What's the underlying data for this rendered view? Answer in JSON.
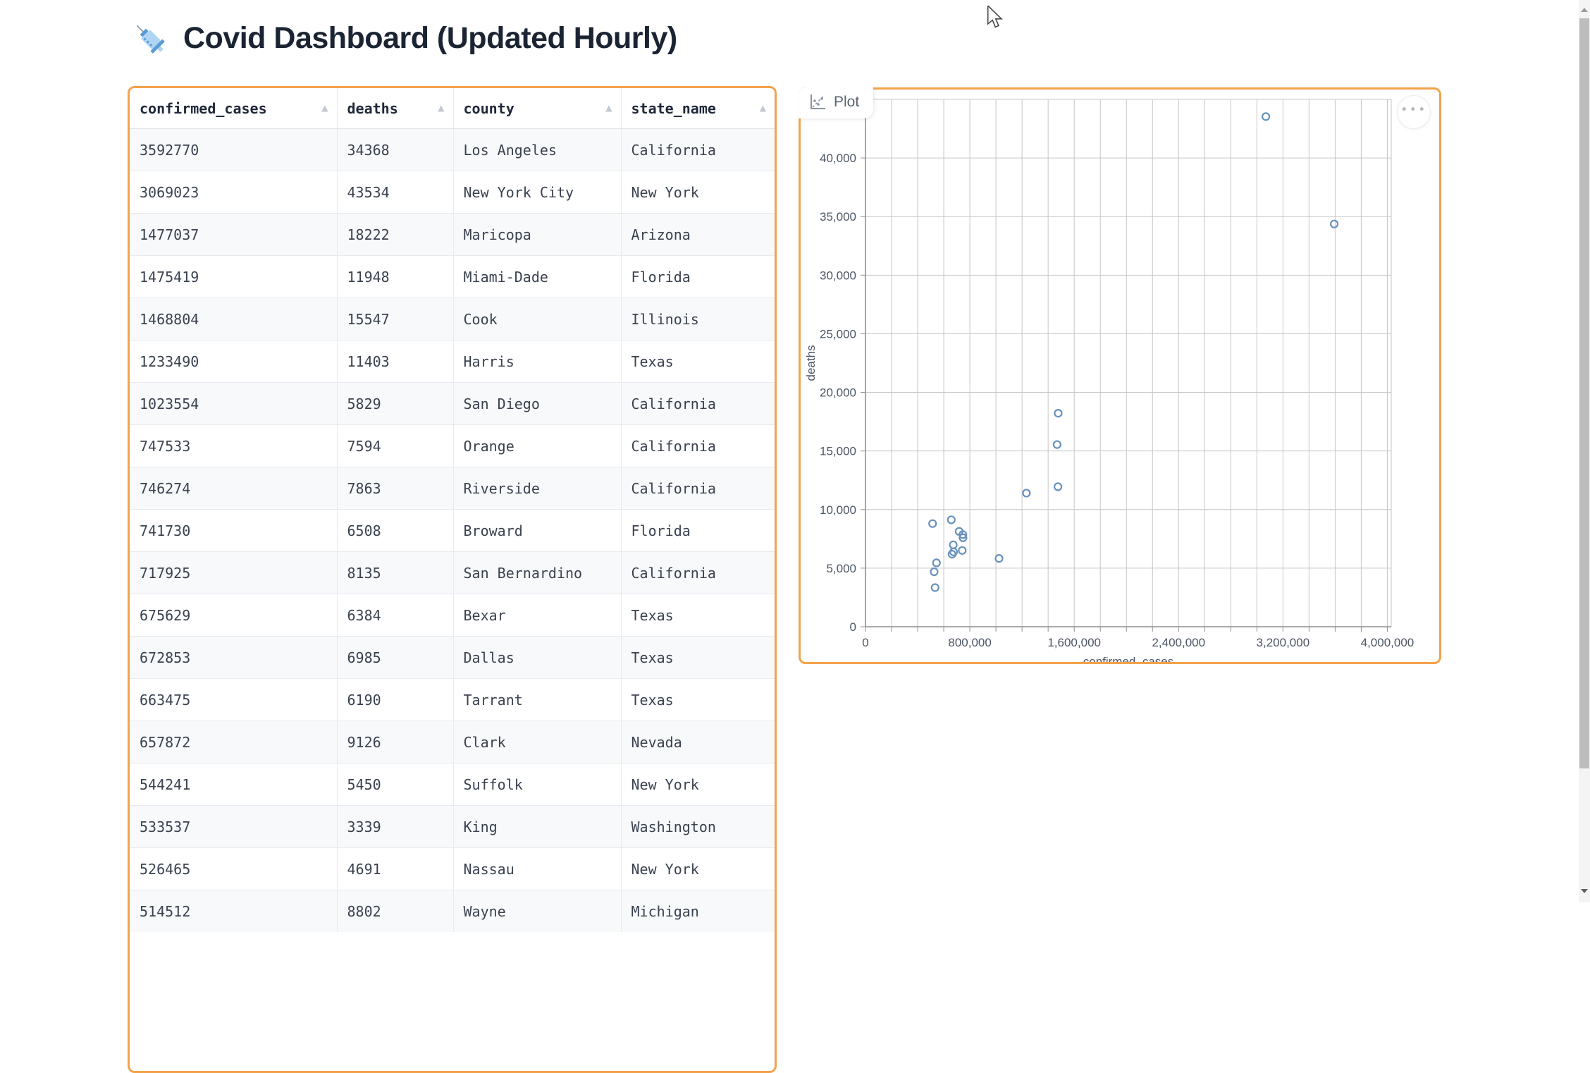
{
  "page": {
    "title": "Covid Dashboard (Updated Hourly)",
    "title_icon": "syringe-icon"
  },
  "table": {
    "columns": [
      {
        "key": "confirmed_cases",
        "label": "confirmed_cases",
        "sortable": true
      },
      {
        "key": "deaths",
        "label": "deaths",
        "sortable": true
      },
      {
        "key": "county",
        "label": "county",
        "sortable": true
      },
      {
        "key": "state_name",
        "label": "state_name",
        "sortable": true
      }
    ],
    "rows": [
      {
        "confirmed_cases": "3592770",
        "deaths": "34368",
        "county": "Los Angeles",
        "state_name": "California"
      },
      {
        "confirmed_cases": "3069023",
        "deaths": "43534",
        "county": "New York City",
        "state_name": "New York"
      },
      {
        "confirmed_cases": "1477037",
        "deaths": "18222",
        "county": "Maricopa",
        "state_name": "Arizona"
      },
      {
        "confirmed_cases": "1475419",
        "deaths": "11948",
        "county": "Miami-Dade",
        "state_name": "Florida"
      },
      {
        "confirmed_cases": "1468804",
        "deaths": "15547",
        "county": "Cook",
        "state_name": "Illinois"
      },
      {
        "confirmed_cases": "1233490",
        "deaths": "11403",
        "county": "Harris",
        "state_name": "Texas"
      },
      {
        "confirmed_cases": "1023554",
        "deaths": "5829",
        "county": "San Diego",
        "state_name": "California"
      },
      {
        "confirmed_cases": "747533",
        "deaths": "7594",
        "county": "Orange",
        "state_name": "California"
      },
      {
        "confirmed_cases": "746274",
        "deaths": "7863",
        "county": "Riverside",
        "state_name": "California"
      },
      {
        "confirmed_cases": "741730",
        "deaths": "6508",
        "county": "Broward",
        "state_name": "Florida"
      },
      {
        "confirmed_cases": "717925",
        "deaths": "8135",
        "county": "San Bernardino",
        "state_name": "California"
      },
      {
        "confirmed_cases": "675629",
        "deaths": "6384",
        "county": "Bexar",
        "state_name": "Texas"
      },
      {
        "confirmed_cases": "672853",
        "deaths": "6985",
        "county": "Dallas",
        "state_name": "Texas"
      },
      {
        "confirmed_cases": "663475",
        "deaths": "6190",
        "county": "Tarrant",
        "state_name": "Texas"
      },
      {
        "confirmed_cases": "657872",
        "deaths": "9126",
        "county": "Clark",
        "state_name": "Nevada"
      },
      {
        "confirmed_cases": "544241",
        "deaths": "5450",
        "county": "Suffolk",
        "state_name": "New York"
      },
      {
        "confirmed_cases": "533537",
        "deaths": "3339",
        "county": "King",
        "state_name": "Washington"
      },
      {
        "confirmed_cases": "526465",
        "deaths": "4691",
        "county": "Nassau",
        "state_name": "New York"
      },
      {
        "confirmed_cases": "514512",
        "deaths": "8802",
        "county": "Wayne",
        "state_name": "Michigan"
      }
    ]
  },
  "plot_panel": {
    "tab_label": "Plot",
    "tab_icon": "scatter-chart-icon",
    "menu_icon": "ellipsis-icon",
    "menu_glyph": "●●●"
  },
  "chart_data": {
    "type": "scatter",
    "title": "",
    "xlabel": "confirmed_cases",
    "ylabel": "deaths",
    "xlim": [
      0,
      4030000
    ],
    "ylim": [
      0,
      45000
    ],
    "x_tick_labels": [
      0,
      800000,
      1600000,
      2400000,
      3200000,
      4000000
    ],
    "x_gridline_step": 200000,
    "y_tick_labels": [
      0,
      5000,
      10000,
      15000,
      20000,
      25000,
      30000,
      35000,
      40000
    ],
    "y_gridline_step": 5000,
    "grid": true,
    "legend": "none",
    "point_color": "#6691bd",
    "points": [
      {
        "label": "Los Angeles",
        "x": 3592770,
        "y": 34368
      },
      {
        "label": "New York City",
        "x": 3069023,
        "y": 43534
      },
      {
        "label": "Maricopa",
        "x": 1477037,
        "y": 18222
      },
      {
        "label": "Miami-Dade",
        "x": 1475419,
        "y": 11948
      },
      {
        "label": "Cook",
        "x": 1468804,
        "y": 15547
      },
      {
        "label": "Harris",
        "x": 1233490,
        "y": 11403
      },
      {
        "label": "San Diego",
        "x": 1023554,
        "y": 5829
      },
      {
        "label": "Orange",
        "x": 747533,
        "y": 7594
      },
      {
        "label": "Riverside",
        "x": 746274,
        "y": 7863
      },
      {
        "label": "Broward",
        "x": 741730,
        "y": 6508
      },
      {
        "label": "San Bernardino",
        "x": 717925,
        "y": 8135
      },
      {
        "label": "Bexar",
        "x": 675629,
        "y": 6384
      },
      {
        "label": "Dallas",
        "x": 672853,
        "y": 6985
      },
      {
        "label": "Tarrant",
        "x": 663475,
        "y": 6190
      },
      {
        "label": "Clark",
        "x": 657872,
        "y": 9126
      },
      {
        "label": "Suffolk",
        "x": 544241,
        "y": 5450
      },
      {
        "label": "King",
        "x": 533537,
        "y": 3339
      },
      {
        "label": "Nassau",
        "x": 526465,
        "y": 4691
      },
      {
        "label": "Wayne",
        "x": 514512,
        "y": 8802
      }
    ]
  },
  "scrollbar": {
    "up_icon": "scroll-up-arrow-icon",
    "down_icon": "scroll-down-arrow-icon"
  }
}
